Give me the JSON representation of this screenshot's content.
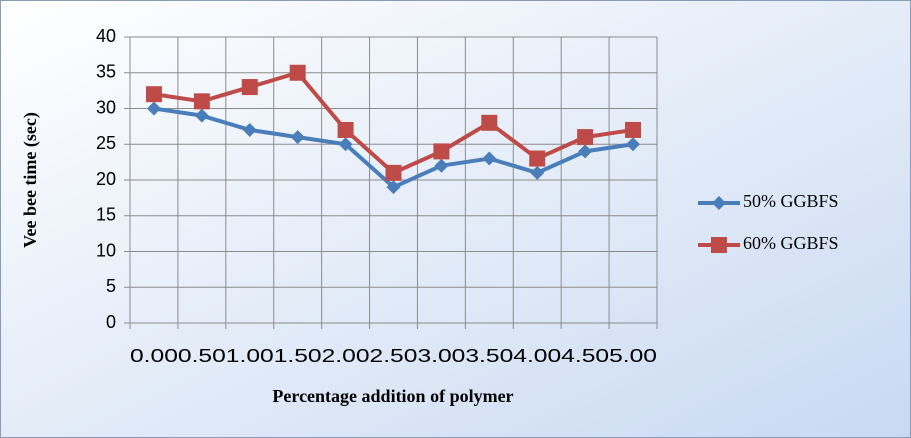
{
  "chart_data": {
    "type": "line",
    "x_label": "Percentage addition of polymer",
    "y_label": "Vee bee time (sec)",
    "categories": [
      "0.00",
      "0.50",
      "1.00",
      "1.50",
      "2.00",
      "2.50",
      "3.00",
      "3.50",
      "4.00",
      "4.50",
      "5.00"
    ],
    "series": [
      {
        "name": "50% GGBFS",
        "color": "#4a7ebb",
        "marker": "diamond",
        "values": [
          30,
          29,
          27,
          26,
          25,
          19,
          22,
          23,
          21,
          24,
          25
        ]
      },
      {
        "name": "60% GGBFS",
        "color": "#be4b48",
        "marker": "square",
        "values": [
          32,
          31,
          33,
          35,
          27,
          21,
          24,
          28,
          23,
          26,
          27
        ]
      }
    ],
    "ylim": [
      0,
      40
    ],
    "yticks": [
      0,
      5,
      10,
      15,
      20,
      25,
      30,
      35,
      40
    ],
    "grid": true,
    "legend": "right"
  }
}
